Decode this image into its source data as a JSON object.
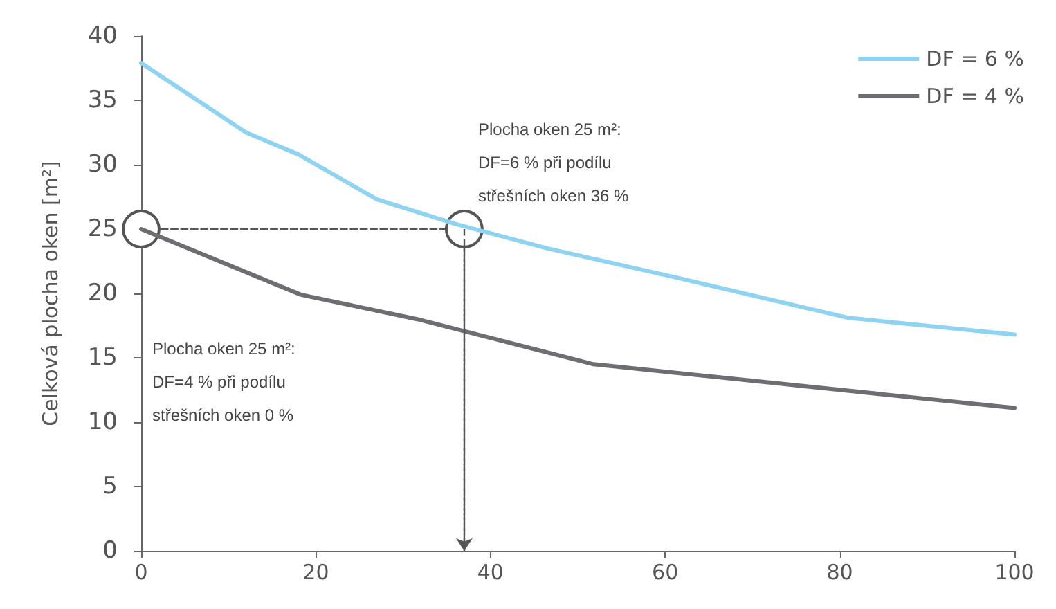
{
  "chart_data": {
    "type": "line",
    "ylabel": "Celková plocha oken [m²]",
    "xlim": [
      0,
      100
    ],
    "xticks": [
      0,
      20,
      40,
      60,
      80,
      100
    ],
    "ylim": [
      0,
      40
    ],
    "yticks": [
      0,
      5,
      10,
      15,
      20,
      25,
      30,
      35,
      40
    ],
    "grid": false,
    "legend": "top right",
    "marker": "none",
    "line_style": "solid",
    "series": [
      {
        "name": "DF = 6 %",
        "color": "#8fd3f2",
        "x": [
          0,
          12,
          18,
          27,
          36,
          46.5,
          61.5,
          81,
          100
        ],
        "values": [
          37.9,
          32.5,
          30.8,
          27.3,
          25.4,
          23.5,
          21.2,
          18.1,
          16.8
        ]
      },
      {
        "name": "DF = 4 %",
        "color": "#6d6e71",
        "x": [
          0,
          18.3,
          31.6,
          51.8,
          100
        ],
        "values": [
          25,
          19.9,
          18,
          14.5,
          11.1
        ]
      },
      {
        "type": "line",
        "color": "#555555",
        "line_style": "dashed",
        "marker": "circle",
        "x": [
          0,
          37,
          37
        ],
        "values": [
          25,
          25,
          0
        ]
      }
    ],
    "annotations": [
      {
        "text": "Plocha oken 25 m²:\nDF=6 % při podílu\nstřešních oken 36 %",
        "x": 37,
        "y": 25
      },
      "Plocha oken 25 m²:\nDF=4 % při podílu\nstřešních oken 0 %"
    ]
  }
}
